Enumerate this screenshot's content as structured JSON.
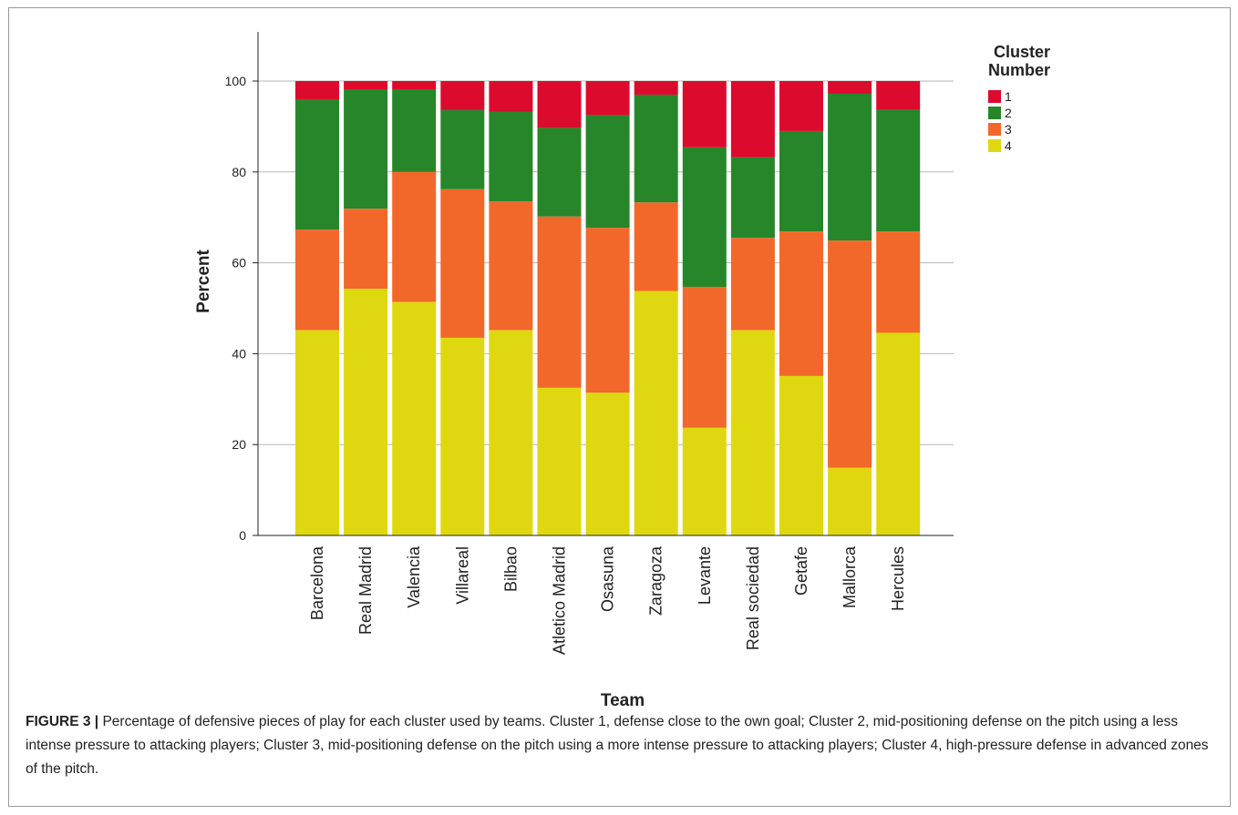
{
  "colors": {
    "cluster_1": "#dc0b2e",
    "cluster_2": "#28862a",
    "cluster_3": "#f2682a",
    "cluster_4": "#dfd811",
    "gridline": "#b7b7b7",
    "axis": "#222222"
  },
  "chart_data": {
    "type": "bar",
    "stacked": true,
    "title": "",
    "xlabel": "Team",
    "ylabel": "Percent",
    "ylim": [
      0,
      100
    ],
    "yticks": [
      0,
      20,
      40,
      60,
      80,
      100
    ],
    "grid": "horizontal",
    "legend_title": "Cluster Number",
    "legend_position": "top-right",
    "categories": [
      "Barcelona",
      "Real Madrid",
      "Valencia",
      "Villareal",
      "Bilbao",
      "Atletico Madrid",
      "Osasuna",
      "Zaragoza",
      "Levante",
      "Real sociedad",
      "Getafe",
      "Mallorca",
      "Hercules"
    ],
    "series": [
      {
        "name": "4",
        "values": [
          45.2,
          54.3,
          51.4,
          43.5,
          45.2,
          32.5,
          31.4,
          53.8,
          23.7,
          45.2,
          35.1,
          14.9,
          44.6
        ]
      },
      {
        "name": "3",
        "values": [
          22.1,
          17.6,
          28.6,
          32.7,
          28.3,
          37.7,
          36.3,
          19.5,
          31.0,
          20.3,
          31.8,
          50.0,
          22.3
        ]
      },
      {
        "name": "2",
        "values": [
          28.7,
          26.3,
          18.2,
          17.4,
          19.7,
          19.5,
          24.8,
          23.7,
          30.7,
          17.7,
          22.1,
          32.3,
          26.8
        ]
      },
      {
        "name": "1",
        "values": [
          4.0,
          1.8,
          1.8,
          6.4,
          6.8,
          10.3,
          7.5,
          3.0,
          14.6,
          16.8,
          11.0,
          2.8,
          6.3
        ]
      }
    ]
  },
  "caption": {
    "label": "FIGURE 3 |",
    "text": " Percentage of defensive pieces of play for each cluster used by teams. Cluster 1, defense close to the own goal; Cluster 2, mid-positioning defense on the pitch using a less intense pressure to attacking players; Cluster 3, mid-positioning defense on the pitch using a more intense pressure to attacking players; Cluster 4, high-pressure defense in advanced zones of the pitch."
  }
}
